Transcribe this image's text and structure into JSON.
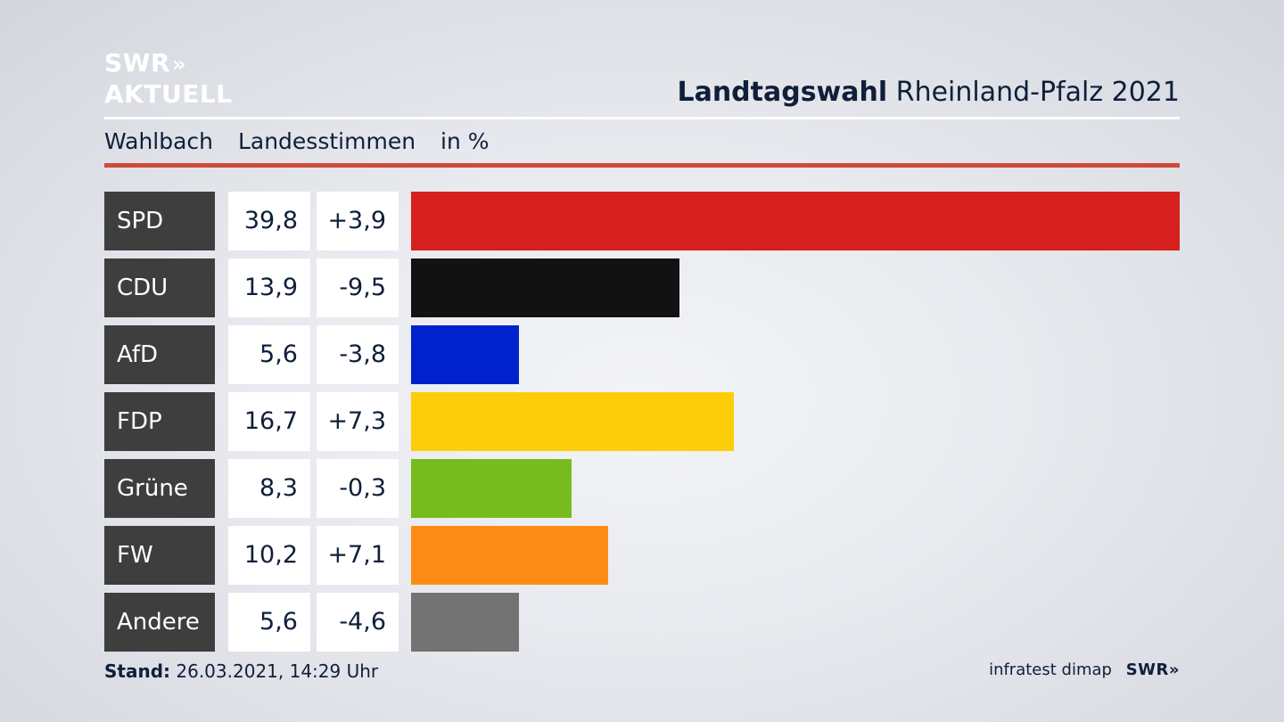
{
  "logo": {
    "line1": "SWR",
    "arrows": "»",
    "line2": "AKTUELL"
  },
  "header": {
    "title_bold": "Landtagswahl",
    "title_rest": "Rheinland-Pfalz 2021",
    "subtitle_place": "Wahlbach",
    "subtitle_type": "Landesstimmen",
    "subtitle_unit": "in %"
  },
  "chart_data": {
    "type": "bar",
    "orientation": "horizontal",
    "categories": [
      "SPD",
      "CDU",
      "AfD",
      "FDP",
      "Grüne",
      "FW",
      "Andere"
    ],
    "values": [
      39.8,
      13.9,
      5.6,
      16.7,
      8.3,
      10.2,
      5.6
    ],
    "value_labels": [
      "39,8",
      "13,9",
      "5,6",
      "16,7",
      "8,3",
      "10,2",
      "5,6"
    ],
    "change_labels": [
      "+3,9",
      "-9,5",
      "-3,8",
      "+7,3",
      "-0,3",
      "+7,1",
      "-4,6"
    ],
    "changes": [
      3.9,
      -9.5,
      -3.8,
      7.3,
      -0.3,
      7.1,
      -4.6
    ],
    "colors": [
      "#d62020",
      "#121212",
      "#0022cc",
      "#fecd0a",
      "#78bb1e",
      "#fd8c16",
      "#737373"
    ],
    "ylim": [
      0,
      39.8
    ]
  },
  "footer": {
    "stand_label": "Stand:",
    "stand_value": "26.03.2021, 14:29 Uhr",
    "source": "infratest dimap",
    "brand": "SWR»"
  }
}
